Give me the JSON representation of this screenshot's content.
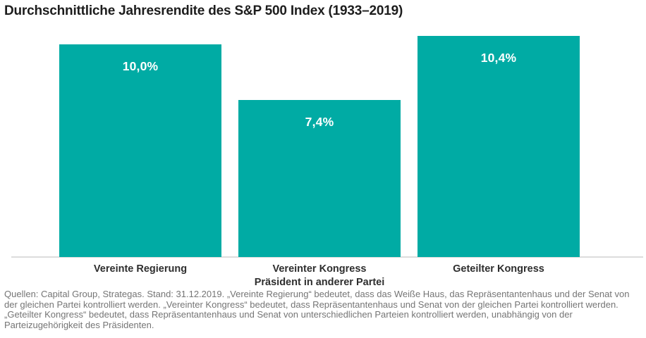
{
  "chart_data": {
    "type": "bar",
    "title": "Durchschnittliche Jahresrendite des S&P 500 Index (1933–2019)",
    "categories": [
      "Vereinte Regierung",
      "Vereinter Kongress\nPräsident in anderer Partei",
      "Geteilter Kongress"
    ],
    "values": [
      10.0,
      7.4,
      10.4
    ],
    "value_labels": [
      "10,0%",
      "7,4%",
      "10,4%"
    ],
    "unit": "%",
    "bar_color": "#00ABA4",
    "xlabel": "",
    "ylabel": "",
    "ylim": [
      0,
      10.4
    ],
    "grid": false,
    "legend": false,
    "axis_line_color": "#dcdcdc"
  },
  "footnote": "Quellen: Capital Group, Strategas. Stand: 31.12.2019. „Vereinte Regierung“ bedeutet, dass das Weiße Haus, das Repräsentantenhaus und der Senat von der gleichen Partei kontrolliert werden. „Vereinter Kongress“ bedeutet, dass Repräsentantenhaus und Senat von der gleichen Partei kontrolliert werden. „Geteilter Kongress“ bedeutet, dass Repräsentantenhaus und Senat von unterschiedlichen Parteien kontrolliert werden, unabhängig von der Parteizugehörigkeit des Präsidenten."
}
